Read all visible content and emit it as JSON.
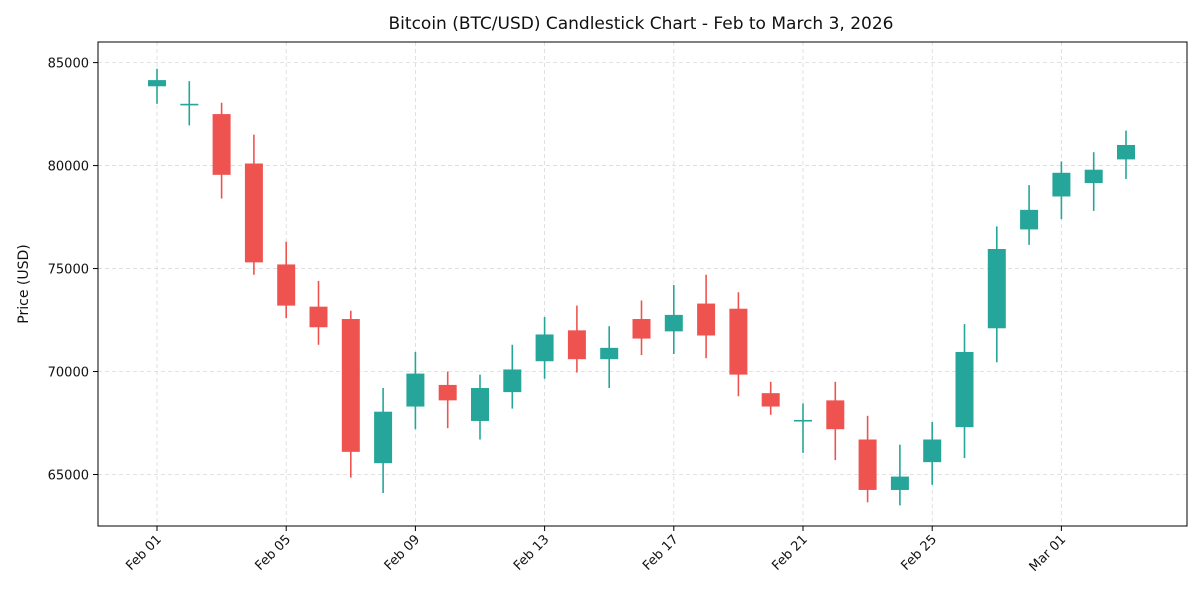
{
  "chart_data": {
    "type": "candlestick",
    "title": "Bitcoin (BTC/USD) Candlestick Chart - Feb to March 3, 2026",
    "xlabel": "",
    "ylabel": "Price (USD)",
    "ylim": [
      62500,
      86000
    ],
    "y_ticks": [
      65000,
      70000,
      75000,
      80000,
      85000
    ],
    "y_tick_labels": [
      "65000",
      "70000",
      "75000",
      "80000",
      "85000"
    ],
    "x_tick_labels": [
      "Feb 01",
      "Feb 05",
      "Feb 09",
      "Feb 13",
      "Feb 17",
      "Feb 21",
      "Feb 25",
      "Mar 01"
    ],
    "x_tick_index": [
      0,
      4,
      8,
      12,
      16,
      20,
      24,
      28
    ],
    "grid": true,
    "colors": {
      "up": "#26a69a",
      "down": "#ef5350",
      "grid": "#d9d9d9",
      "axis": "#000000"
    },
    "series": [
      {
        "date": "Feb 01",
        "open": 83850,
        "high": 84700,
        "low": 83000,
        "close": 84150
      },
      {
        "date": "Feb 02",
        "open": 83000,
        "high": 84100,
        "low": 81950,
        "close": 83000
      },
      {
        "date": "Feb 03",
        "open": 82500,
        "high": 83050,
        "low": 78400,
        "close": 79550
      },
      {
        "date": "Feb 04",
        "open": 80100,
        "high": 81500,
        "low": 74700,
        "close": 75300
      },
      {
        "date": "Feb 05",
        "open": 75200,
        "high": 76300,
        "low": 72600,
        "close": 73200
      },
      {
        "date": "Feb 06",
        "open": 73150,
        "high": 74400,
        "low": 71300,
        "close": 72150
      },
      {
        "date": "Feb 07",
        "open": 72550,
        "high": 72950,
        "low": 64850,
        "close": 66100
      },
      {
        "date": "Feb 08",
        "open": 65550,
        "high": 69200,
        "low": 64100,
        "close": 68050
      },
      {
        "date": "Feb 09",
        "open": 68300,
        "high": 70950,
        "low": 67200,
        "close": 69900
      },
      {
        "date": "Feb 10",
        "open": 69350,
        "high": 70000,
        "low": 67250,
        "close": 68600
      },
      {
        "date": "Feb 11",
        "open": 67600,
        "high": 69850,
        "low": 66700,
        "close": 69200
      },
      {
        "date": "Feb 12",
        "open": 69000,
        "high": 71300,
        "low": 68200,
        "close": 70100
      },
      {
        "date": "Feb 13",
        "open": 70500,
        "high": 72650,
        "low": 69650,
        "close": 71800
      },
      {
        "date": "Feb 14",
        "open": 72000,
        "high": 73200,
        "low": 69950,
        "close": 70600
      },
      {
        "date": "Feb 15",
        "open": 70600,
        "high": 72200,
        "low": 69200,
        "close": 71150
      },
      {
        "date": "Feb 16",
        "open": 72550,
        "high": 73450,
        "low": 70800,
        "close": 71600
      },
      {
        "date": "Feb 17",
        "open": 71950,
        "high": 74200,
        "low": 70850,
        "close": 72750
      },
      {
        "date": "Feb 18",
        "open": 73300,
        "high": 74700,
        "low": 70650,
        "close": 71750
      },
      {
        "date": "Feb 19",
        "open": 73050,
        "high": 73850,
        "low": 68800,
        "close": 69850
      },
      {
        "date": "Feb 20",
        "open": 68950,
        "high": 69500,
        "low": 67900,
        "close": 68300
      },
      {
        "date": "Feb 21",
        "open": 67650,
        "high": 68450,
        "low": 66050,
        "close": 67650
      },
      {
        "date": "Feb 22",
        "open": 68600,
        "high": 69500,
        "low": 65700,
        "close": 67200
      },
      {
        "date": "Feb 23",
        "open": 66700,
        "high": 67850,
        "low": 63650,
        "close": 64250
      },
      {
        "date": "Feb 24",
        "open": 64250,
        "high": 66450,
        "low": 63500,
        "close": 64900
      },
      {
        "date": "Feb 25",
        "open": 65600,
        "high": 67550,
        "low": 64500,
        "close": 66700
      },
      {
        "date": "Feb 26",
        "open": 67300,
        "high": 72300,
        "low": 65800,
        "close": 70950
      },
      {
        "date": "Feb 27",
        "open": 72100,
        "high": 77050,
        "low": 70450,
        "close": 75950
      },
      {
        "date": "Feb 28",
        "open": 76900,
        "high": 79050,
        "low": 76150,
        "close": 77850
      },
      {
        "date": "Mar 01",
        "open": 78500,
        "high": 80200,
        "low": 77400,
        "close": 79650
      },
      {
        "date": "Mar 02",
        "open": 79150,
        "high": 80650,
        "low": 77800,
        "close": 79800
      },
      {
        "date": "Mar 03",
        "open": 80300,
        "high": 81700,
        "low": 79350,
        "close": 81000
      }
    ]
  }
}
